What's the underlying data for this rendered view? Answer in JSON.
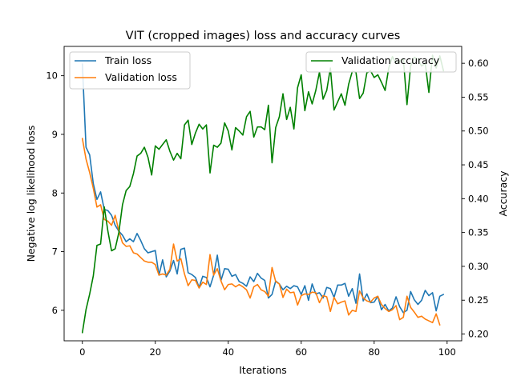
{
  "chart_data": {
    "type": "line",
    "title": "VIT (cropped images) loss and accuracy curves",
    "xlabel": "Iterations",
    "ylabel_left": "Negative log likelihood loss",
    "ylabel_right": "Accuracy",
    "xlim": [
      -5,
      104
    ],
    "ylim_left": [
      5.48,
      10.5
    ],
    "ylim_right": [
      0.19,
      0.625
    ],
    "x_ticks": [
      0,
      20,
      40,
      60,
      80,
      100
    ],
    "y_ticks_left": [
      6,
      7,
      8,
      9,
      10
    ],
    "y_ticks_right": [
      0.2,
      0.25,
      0.3,
      0.35,
      0.4,
      0.45,
      0.5,
      0.55,
      0.6
    ],
    "y_tick_labels_right": [
      "0.20",
      "0.25",
      "0.30",
      "0.35",
      "0.40",
      "0.45",
      "0.50",
      "0.55",
      "0.60"
    ],
    "grid": false,
    "legend_left": {
      "placement": "upper-left",
      "entries": [
        "Train loss",
        "Validation loss"
      ]
    },
    "legend_right": {
      "placement": "upper-right",
      "entries": [
        "Validation accuracy"
      ]
    },
    "colors": {
      "train_loss": "#1f77b4",
      "val_loss": "#ff7f0e",
      "val_acc": "#008000"
    },
    "series": [
      {
        "name": "Train loss",
        "axis": "left",
        "color": "#1f77b4",
        "x_start": 0,
        "x_step": 1,
        "values": [
          10.2,
          8.78,
          8.65,
          8.16,
          7.89,
          8.02,
          7.72,
          7.7,
          7.62,
          7.45,
          7.35,
          7.28,
          7.17,
          7.22,
          7.17,
          7.31,
          7.19,
          7.05,
          6.98,
          7.0,
          7.02,
          6.6,
          6.86,
          6.57,
          6.67,
          6.85,
          6.62,
          7.04,
          7.06,
          6.64,
          6.61,
          6.56,
          6.39,
          6.58,
          6.56,
          6.4,
          6.6,
          6.94,
          6.51,
          6.71,
          6.7,
          6.58,
          6.61,
          6.49,
          6.46,
          6.41,
          6.57,
          6.49,
          6.63,
          6.55,
          6.51,
          6.21,
          6.27,
          6.5,
          6.45,
          6.35,
          6.41,
          6.37,
          6.42,
          6.4,
          6.27,
          6.42,
          6.17,
          6.45,
          6.28,
          6.3,
          6.21,
          6.39,
          6.37,
          6.22,
          6.43,
          6.43,
          6.46,
          6.24,
          6.37,
          6.12,
          6.62,
          6.16,
          6.28,
          6.13,
          6.14,
          6.24,
          6.01,
          6.1,
          5.99,
          6.04,
          6.23,
          6.06,
          5.96,
          6.0,
          6.32,
          6.18,
          6.1,
          6.17,
          6.34,
          6.25,
          6.3,
          5.99,
          6.24,
          6.27
        ]
      },
      {
        "name": "Validation loss",
        "axis": "left",
        "color": "#ff7f0e",
        "x_start": 0,
        "x_step": 1,
        "values": [
          8.93,
          8.58,
          8.35,
          8.08,
          7.76,
          7.8,
          7.55,
          7.52,
          7.45,
          7.62,
          7.35,
          7.15,
          7.09,
          7.1,
          6.98,
          6.96,
          6.9,
          6.84,
          6.82,
          6.82,
          6.78,
          6.6,
          6.62,
          6.6,
          6.7,
          7.13,
          6.84,
          6.88,
          6.62,
          6.42,
          6.52,
          6.51,
          6.38,
          6.48,
          6.44,
          6.95,
          6.6,
          6.71,
          6.5,
          6.35,
          6.44,
          6.45,
          6.4,
          6.44,
          6.4,
          6.35,
          6.21,
          6.4,
          6.44,
          6.35,
          6.32,
          6.24,
          6.73,
          6.49,
          6.45,
          6.22,
          6.36,
          6.3,
          6.31,
          6.09,
          6.25,
          6.28,
          6.27,
          6.31,
          6.3,
          6.13,
          6.25,
          6.23,
          5.98,
          6.22,
          6.11,
          6.14,
          6.16,
          5.92,
          6.0,
          5.98,
          6.33,
          6.21,
          6.16,
          6.14,
          6.21,
          6.24,
          6.1,
          6.03,
          5.98,
          6.01,
          6.08,
          5.84,
          5.88,
          6.24,
          6.05,
          5.97,
          5.88,
          5.9,
          5.85,
          5.82,
          5.79,
          5.94,
          5.75
        ]
      },
      {
        "name": "Validation accuracy",
        "axis": "right",
        "color": "#008000",
        "x_start": 0,
        "x_step": 1,
        "values": [
          0.202,
          0.236,
          0.259,
          0.286,
          0.331,
          0.333,
          0.388,
          0.352,
          0.323,
          0.326,
          0.35,
          0.391,
          0.412,
          0.418,
          0.437,
          0.463,
          0.467,
          0.476,
          0.461,
          0.435,
          0.478,
          0.473,
          0.48,
          0.487,
          0.47,
          0.457,
          0.467,
          0.459,
          0.509,
          0.516,
          0.48,
          0.497,
          0.51,
          0.503,
          0.509,
          0.438,
          0.479,
          0.476,
          0.482,
          0.512,
          0.5,
          0.472,
          0.505,
          0.5,
          0.494,
          0.521,
          0.529,
          0.491,
          0.506,
          0.506,
          0.502,
          0.538,
          0.453,
          0.505,
          0.521,
          0.555,
          0.517,
          0.535,
          0.503,
          0.564,
          0.583,
          0.53,
          0.558,
          0.54,
          0.56,
          0.587,
          0.547,
          0.56,
          0.593,
          0.531,
          0.543,
          0.555,
          0.538,
          0.569,
          0.588,
          0.587,
          0.548,
          0.556,
          0.586,
          0.589,
          0.579,
          0.583,
          0.572,
          0.56,
          0.593,
          0.61,
          0.6,
          0.603,
          0.607,
          0.539,
          0.596,
          0.609,
          0.606,
          0.596,
          0.6,
          0.557,
          0.612,
          0.593,
          0.611,
          0.589
        ]
      }
    ]
  }
}
